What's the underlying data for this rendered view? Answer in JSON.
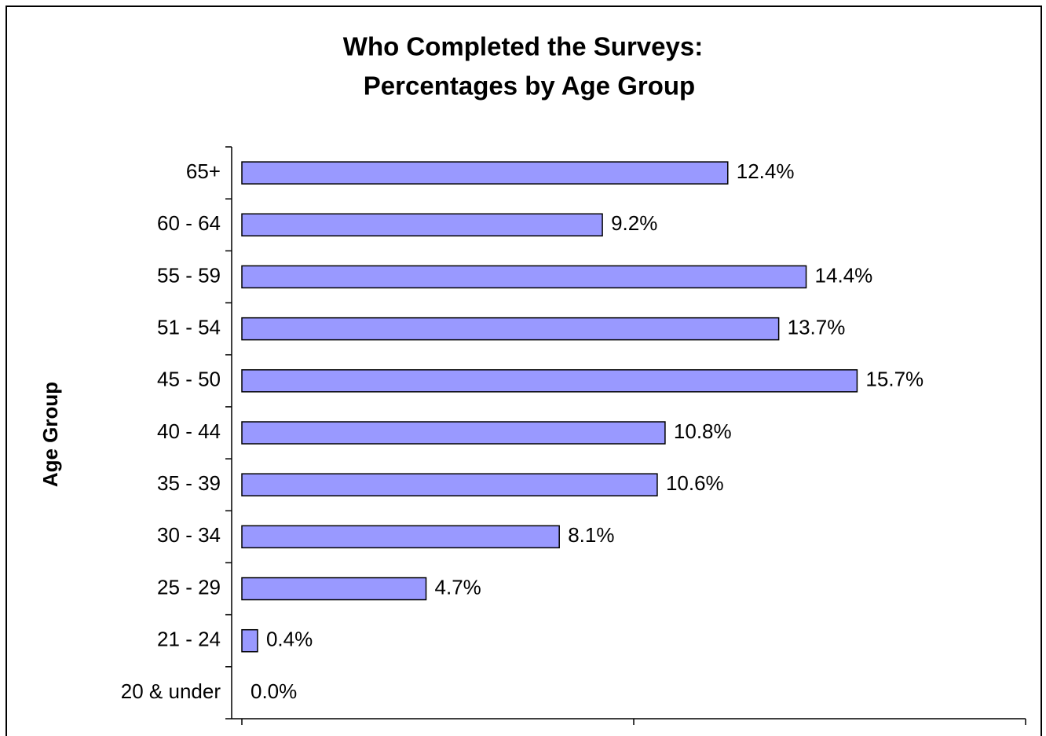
{
  "chart_data": {
    "type": "bar",
    "orientation": "horizontal",
    "title": [
      "Who Completed the Surveys:",
      "Percentages by Age Group"
    ],
    "y_label": "Age Group",
    "categories": [
      "65+",
      "60 - 64",
      "55 - 59",
      "51 - 54",
      "45 - 50",
      "40 - 44",
      "35 - 39",
      "30 - 34",
      "25 - 29",
      "21 - 24",
      "20 & under"
    ],
    "values": [
      12.4,
      9.2,
      14.4,
      13.7,
      15.7,
      10.8,
      10.6,
      8.1,
      4.7,
      0.4,
      0.0
    ],
    "value_labels": [
      "12.4%",
      "9.2%",
      "14.4%",
      "13.7%",
      "15.7%",
      "10.8%",
      "10.6%",
      "8.1%",
      "4.7%",
      "0.4%",
      "0.0%"
    ],
    "color": "#9999ff",
    "xlim": [
      0,
      20
    ],
    "xticks": [
      0,
      10,
      20
    ],
    "grid": false
  }
}
